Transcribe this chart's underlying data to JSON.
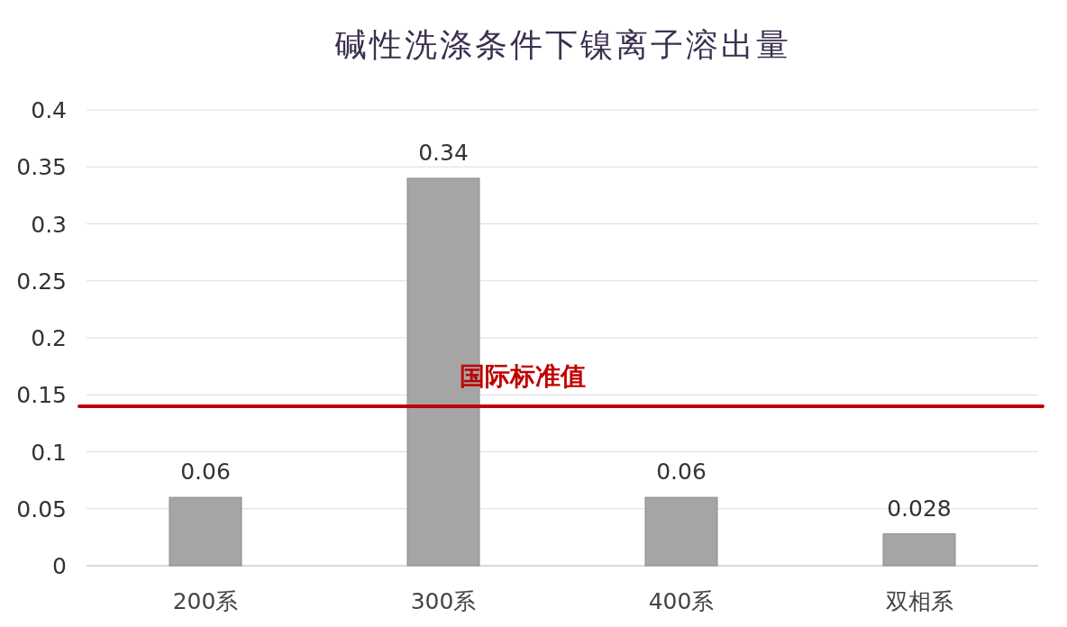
{
  "chart_data": {
    "type": "bar",
    "title": "碱性洗涤条件下镍离子溶出量",
    "categories": [
      "200系",
      "300系",
      "400系",
      "双相系"
    ],
    "values": [
      0.06,
      0.34,
      0.06,
      0.028
    ],
    "color": "#a5a5a5",
    "ylim": [
      0,
      0.4
    ],
    "yticks": [
      0,
      0.05,
      0.1,
      0.15,
      0.2,
      0.25,
      0.3,
      0.35,
      0.4
    ],
    "grid": "y",
    "data_labels": true,
    "ref_lines": [
      {
        "axis": "y",
        "value": 0.14,
        "label": "国际标准值",
        "color": "#c00000",
        "line_style": "solid"
      }
    ]
  }
}
